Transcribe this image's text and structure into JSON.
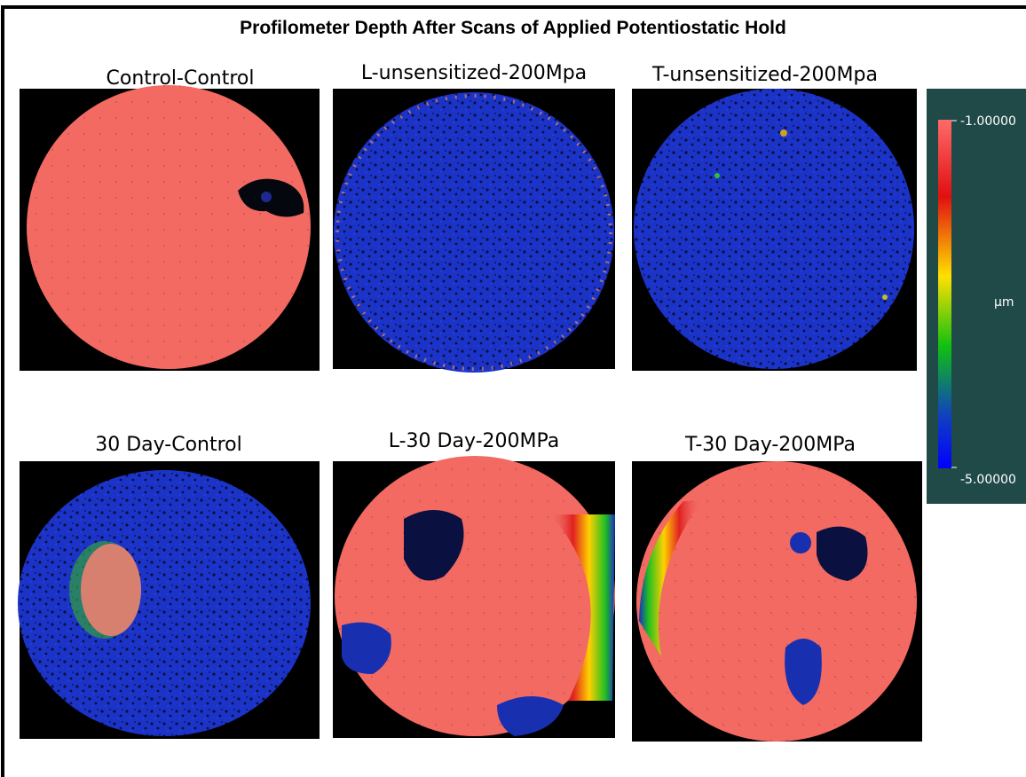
{
  "title": "Profilometer Depth After Scans of Applied Potentiostatic Hold",
  "panels": [
    {
      "label": "Control-Control"
    },
    {
      "label": "L-unsensitized-200Mpa"
    },
    {
      "label": "T-unsensitized-200Mpa"
    },
    {
      "label": "30 Day-Control"
    },
    {
      "label": "L-30 Day-200MPa"
    },
    {
      "label": "T-30 Day-200MPa"
    }
  ],
  "colorbar": {
    "max_label": "-1.00000",
    "unit": "µm",
    "min_label": "-5.00000"
  }
}
